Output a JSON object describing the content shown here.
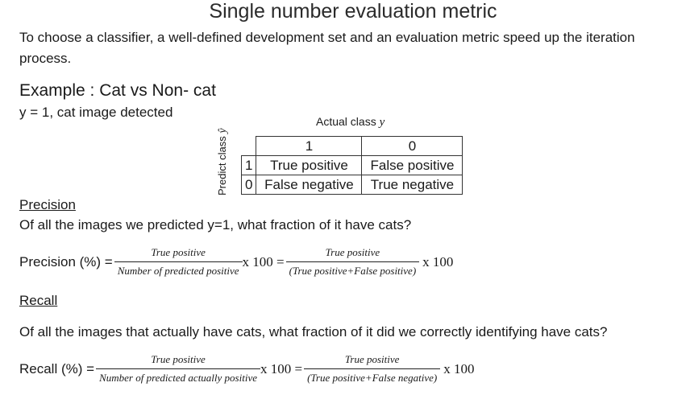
{
  "title": "Single number evaluation metric",
  "intro": "To choose a classifier, a well-defined development set and an evaluation metric speed up the iteration process.",
  "example": {
    "heading": "Example : Cat vs Non- cat",
    "definition": "y = 1, cat image detected"
  },
  "confusion_matrix": {
    "actual_label": "Actual class",
    "actual_symbol": "y",
    "predict_label": "Predict class",
    "predict_symbol": "ŷ",
    "col_headers": [
      "1",
      "0"
    ],
    "rows": [
      {
        "label": "1",
        "cells": [
          "True positive",
          "False positive"
        ]
      },
      {
        "label": "0",
        "cells": [
          "False negative",
          "True negative"
        ]
      }
    ]
  },
  "precision": {
    "heading": "Precision",
    "question": "Of all the images we predicted y=1, what fraction of it have cats?",
    "label": "Precision (%) =",
    "frac1_num": "True positive",
    "frac1_den": "Number of predicted positive",
    "times1": "x 100 =",
    "frac2_num": "True positive",
    "frac2_den": "(True positive+False positive)",
    "times2": "x 100"
  },
  "recall": {
    "heading": "Recall",
    "question": "Of all the images that actually have cats, what fraction of it did we correctly identifying have cats?",
    "label": "Recall (%) =",
    "frac1_num": "True positive",
    "frac1_den": "Number of predicted actually positive",
    "times1": "x 100 =",
    "frac2_num": "True positive",
    "frac2_den": "(True positive+False negative)",
    "times2": "x 100"
  }
}
